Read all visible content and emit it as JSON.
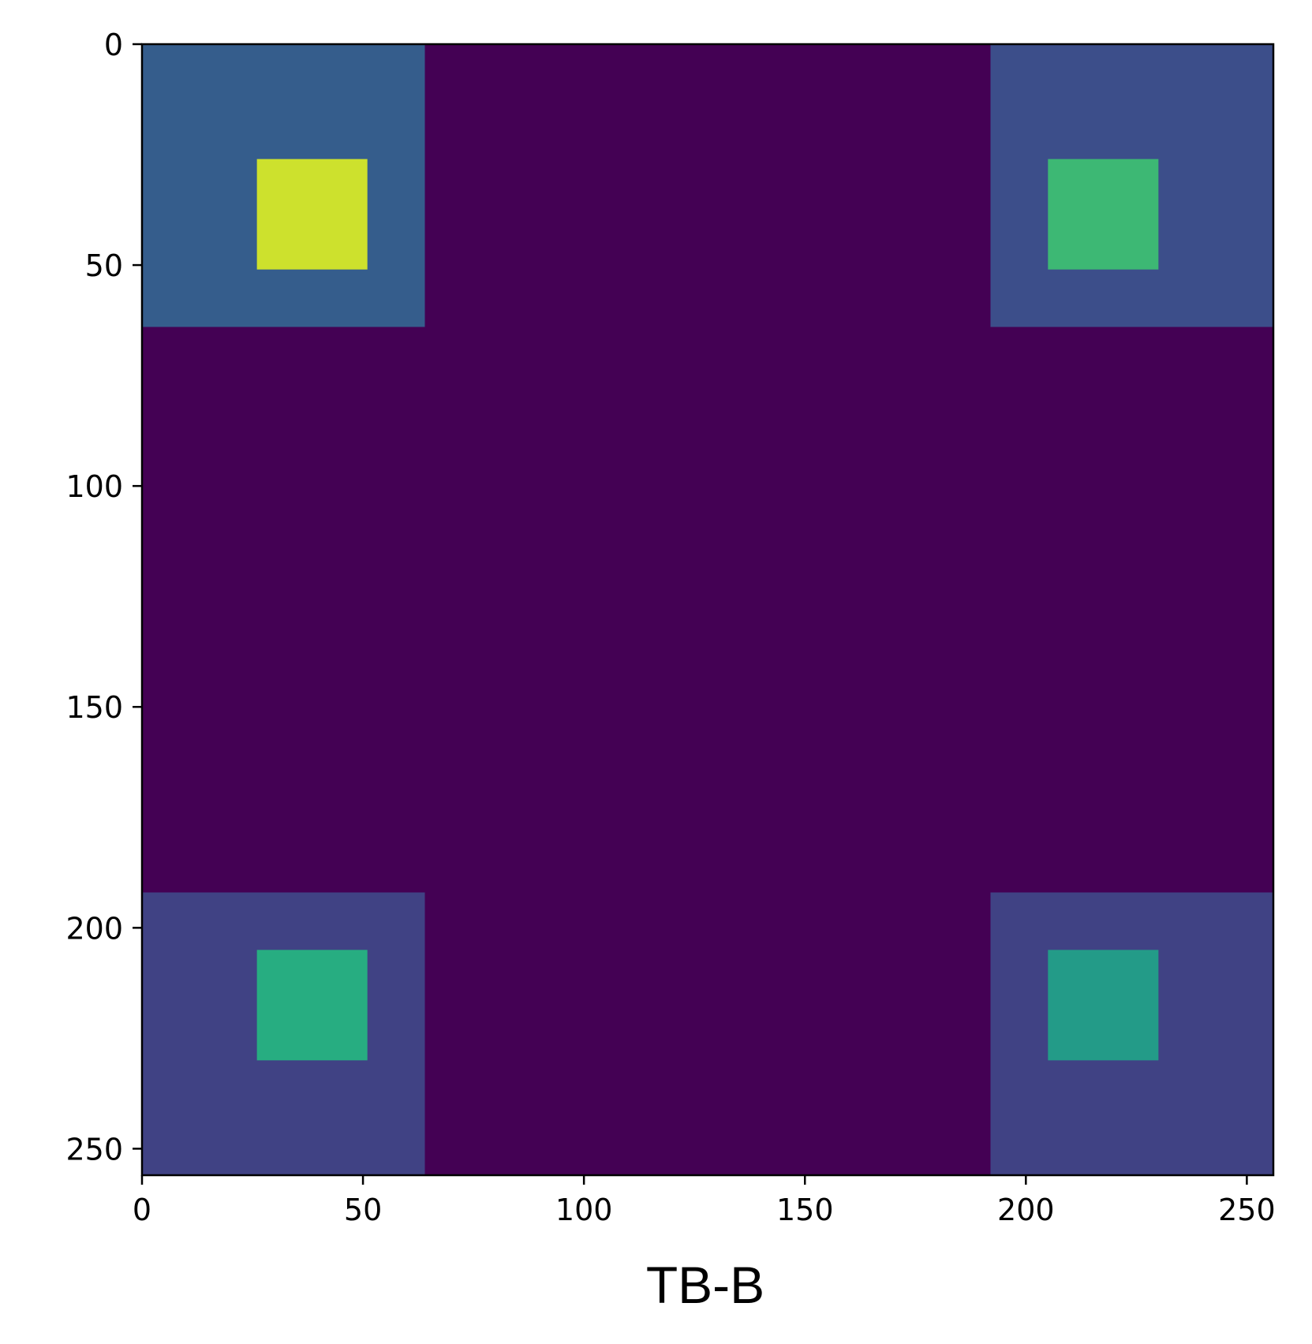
{
  "chart_data": {
    "type": "heatmap",
    "title": "",
    "xlabel": "TB-B",
    "ylabel": "",
    "xlim": [
      0,
      256
    ],
    "ylim": [
      256,
      0
    ],
    "y_inverted": true,
    "grid": false,
    "colormap": "viridis",
    "background_value": 0.0,
    "x_ticks": [
      0,
      50,
      100,
      150,
      200,
      250
    ],
    "y_ticks": [
      0,
      50,
      100,
      150,
      200,
      250
    ],
    "x_tick_labels": [
      "0",
      "50",
      "100",
      "150",
      "200",
      "250"
    ],
    "y_tick_labels": [
      "0",
      "50",
      "100",
      "150",
      "200",
      "250"
    ],
    "regions": [
      {
        "name": "top-left-block",
        "x": [
          0,
          64
        ],
        "y": [
          0,
          64
        ],
        "value": 0.3
      },
      {
        "name": "top-left-core",
        "x": [
          26,
          51
        ],
        "y": [
          26,
          51
        ],
        "value": 0.93
      },
      {
        "name": "top-right-block",
        "x": [
          192,
          256
        ],
        "y": [
          0,
          64
        ],
        "value": 0.24
      },
      {
        "name": "top-right-core",
        "x": [
          205,
          230
        ],
        "y": [
          26,
          51
        ],
        "value": 0.68
      },
      {
        "name": "bottom-left-block",
        "x": [
          0,
          64
        ],
        "y": [
          192,
          256
        ],
        "value": 0.2
      },
      {
        "name": "bottom-left-core",
        "x": [
          26,
          51
        ],
        "y": [
          205,
          230
        ],
        "value": 0.63
      },
      {
        "name": "bottom-right-block",
        "x": [
          192,
          256
        ],
        "y": [
          192,
          256
        ],
        "value": 0.2
      },
      {
        "name": "bottom-right-core",
        "x": [
          205,
          230
        ],
        "y": [
          205,
          230
        ],
        "value": 0.55
      }
    ]
  }
}
